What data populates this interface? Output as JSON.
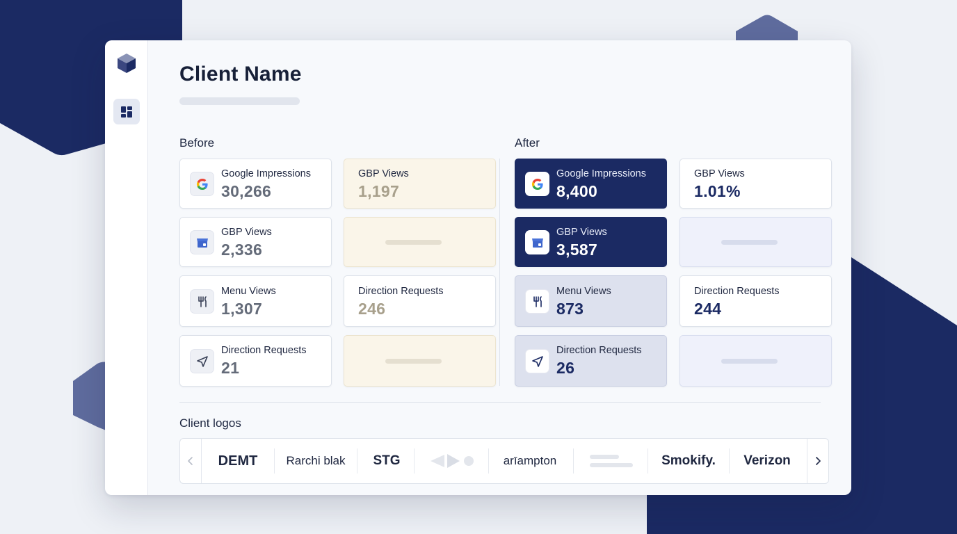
{
  "header": {
    "title": "Client Name"
  },
  "before": {
    "label": "Before",
    "tiles": [
      {
        "label": "Google Impressions",
        "value": "30,266",
        "icon": "google-icon"
      },
      {
        "label": "GBP Views",
        "value": "1,197"
      },
      {
        "label": "GBP Views",
        "value": "2,336",
        "icon": "store-icon"
      },
      {
        "label": "Menu Views",
        "value": "1,307",
        "icon": "utensils-icon"
      },
      {
        "label": "Direction Requests",
        "value": "246"
      },
      {
        "label": "Direction Requests",
        "value": "21",
        "icon": "navigation-arrow-icon"
      }
    ]
  },
  "after": {
    "label": "After",
    "tiles": [
      {
        "label": "Google Impressions",
        "value": "8,400",
        "icon": "google-icon"
      },
      {
        "label": "GBP Views",
        "value": "1.01%"
      },
      {
        "label": "GBP Views",
        "value": "3,587",
        "icon": "store-icon"
      },
      {
        "label": "Menu Views",
        "value": "873",
        "icon": "utensils-icon"
      },
      {
        "label": "Direction Requests",
        "value": "244"
      },
      {
        "label": "Direction Requests",
        "value": "26",
        "icon": "navigation-arrow-icon"
      }
    ]
  },
  "logos": {
    "label": "Client logos",
    "items": [
      "DEMT",
      "Rarchi blak",
      "STG",
      "arīampton",
      "Smokify.",
      "Verizon"
    ]
  },
  "colors": {
    "navy": "#1b2a63",
    "slate": "#5f6c9e",
    "cream": "#faf5e9",
    "lavender": "#eff1fb"
  }
}
